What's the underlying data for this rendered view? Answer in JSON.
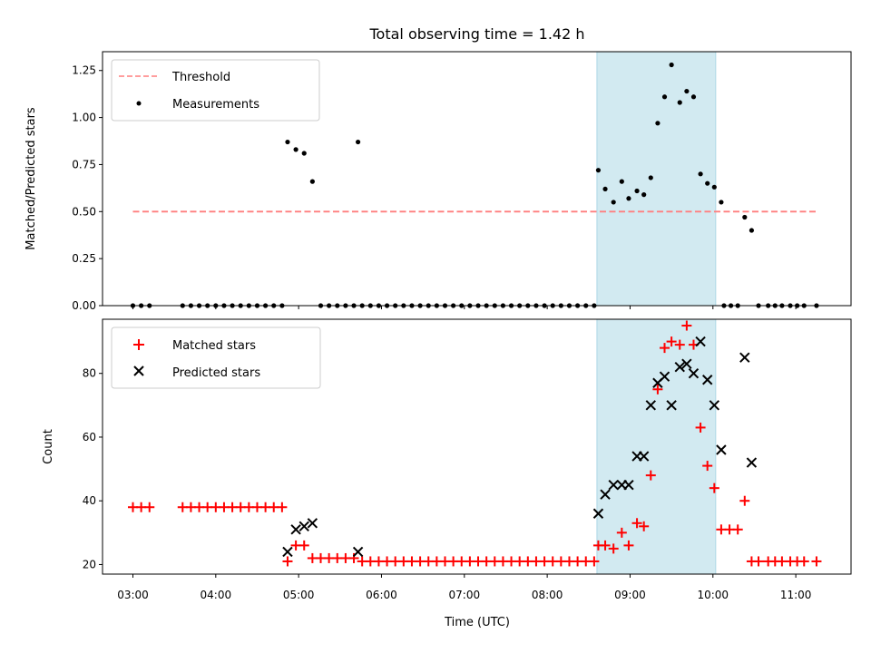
{
  "chart_data": [
    {
      "type": "scatter",
      "title": "Total observing time = 1.42 h",
      "xlabel": "",
      "ylabel": "Matched/Predicted stars",
      "x_axis": "time (UTC, hours)",
      "xlim": [
        "02:38",
        "11:40"
      ],
      "ylim": [
        0,
        1.35
      ],
      "yticks": [
        "0.00",
        "0.25",
        "0.50",
        "0.75",
        "1.00",
        "1.25"
      ],
      "xticks": [
        "03:00",
        "04:00",
        "05:00",
        "06:00",
        "07:00",
        "08:00",
        "09:00",
        "10:00",
        "11:00"
      ],
      "highlight_span": [
        "08:36",
        "10:02"
      ],
      "highlight_color": "#add8e6",
      "legend_position": "upper-left",
      "threshold": {
        "name": "Threshold",
        "value": 0.5,
        "x_range": [
          "03:00",
          "11:15"
        ],
        "color": "#ff7f7f",
        "style": "dashed"
      },
      "series": [
        {
          "name": "Measurements",
          "color": "#000000",
          "marker": "dot",
          "points": [
            [
              "03:00",
              0
            ],
            [
              "03:06",
              0
            ],
            [
              "03:12",
              0
            ],
            [
              "03:36",
              0
            ],
            [
              "03:42",
              0
            ],
            [
              "03:48",
              0
            ],
            [
              "03:54",
              0
            ],
            [
              "04:00",
              0
            ],
            [
              "04:06",
              0
            ],
            [
              "04:12",
              0
            ],
            [
              "04:18",
              0
            ],
            [
              "04:24",
              0
            ],
            [
              "04:30",
              0
            ],
            [
              "04:36",
              0
            ],
            [
              "04:42",
              0
            ],
            [
              "04:48",
              0
            ],
            [
              "04:52",
              0.87
            ],
            [
              "04:58",
              0.83
            ],
            [
              "05:04",
              0.81
            ],
            [
              "05:10",
              0.66
            ],
            [
              "05:16",
              0
            ],
            [
              "05:22",
              0
            ],
            [
              "05:28",
              0
            ],
            [
              "05:34",
              0
            ],
            [
              "05:40",
              0
            ],
            [
              "05:43",
              0.87
            ],
            [
              "05:46",
              0
            ],
            [
              "05:52",
              0
            ],
            [
              "05:58",
              0
            ],
            [
              "06:04",
              0
            ],
            [
              "06:10",
              0
            ],
            [
              "06:16",
              0
            ],
            [
              "06:22",
              0
            ],
            [
              "06:28",
              0
            ],
            [
              "06:34",
              0
            ],
            [
              "06:40",
              0
            ],
            [
              "06:46",
              0
            ],
            [
              "06:52",
              0
            ],
            [
              "06:58",
              0
            ],
            [
              "07:04",
              0
            ],
            [
              "07:10",
              0
            ],
            [
              "07:16",
              0
            ],
            [
              "07:22",
              0
            ],
            [
              "07:28",
              0
            ],
            [
              "07:34",
              0
            ],
            [
              "07:40",
              0
            ],
            [
              "07:46",
              0
            ],
            [
              "07:52",
              0
            ],
            [
              "07:58",
              0
            ],
            [
              "08:04",
              0
            ],
            [
              "08:10",
              0
            ],
            [
              "08:16",
              0
            ],
            [
              "08:22",
              0
            ],
            [
              "08:28",
              0
            ],
            [
              "08:34",
              0
            ],
            [
              "08:37",
              0.72
            ],
            [
              "08:42",
              0.62
            ],
            [
              "08:48",
              0.55
            ],
            [
              "08:54",
              0.66
            ],
            [
              "08:59",
              0.57
            ],
            [
              "09:05",
              0.61
            ],
            [
              "09:10",
              0.59
            ],
            [
              "09:15",
              0.68
            ],
            [
              "09:20",
              0.97
            ],
            [
              "09:25",
              1.11
            ],
            [
              "09:30",
              1.28
            ],
            [
              "09:36",
              1.08
            ],
            [
              "09:41",
              1.14
            ],
            [
              "09:46",
              1.11
            ],
            [
              "09:51",
              0.7
            ],
            [
              "09:56",
              0.65
            ],
            [
              "10:01",
              0.63
            ],
            [
              "10:06",
              0.55
            ],
            [
              "10:08",
              0
            ],
            [
              "10:13",
              0
            ],
            [
              "10:18",
              0
            ],
            [
              "10:23",
              0.47
            ],
            [
              "10:28",
              0.4
            ],
            [
              "10:33",
              0
            ],
            [
              "10:40",
              0
            ],
            [
              "10:45",
              0
            ],
            [
              "10:50",
              0
            ],
            [
              "10:56",
              0
            ],
            [
              "11:01",
              0
            ],
            [
              "11:06",
              0
            ],
            [
              "11:15",
              0
            ]
          ]
        }
      ]
    },
    {
      "type": "scatter",
      "title": "",
      "xlabel": "Time (UTC)",
      "ylabel": "Count",
      "xlim": [
        "02:38",
        "11:40"
      ],
      "ylim": [
        17,
        97
      ],
      "yticks": [
        "20",
        "40",
        "60",
        "80"
      ],
      "xticks": [
        "03:00",
        "04:00",
        "05:00",
        "06:00",
        "07:00",
        "08:00",
        "09:00",
        "10:00",
        "11:00"
      ],
      "highlight_span": [
        "08:36",
        "10:02"
      ],
      "highlight_color": "#add8e6",
      "legend_position": "upper-left",
      "series": [
        {
          "name": "Matched stars",
          "color": "#ff0000",
          "marker": "plus",
          "points": [
            [
              "03:00",
              38
            ],
            [
              "03:06",
              38
            ],
            [
              "03:12",
              38
            ],
            [
              "03:36",
              38
            ],
            [
              "03:42",
              38
            ],
            [
              "03:48",
              38
            ],
            [
              "03:54",
              38
            ],
            [
              "04:00",
              38
            ],
            [
              "04:06",
              38
            ],
            [
              "04:12",
              38
            ],
            [
              "04:18",
              38
            ],
            [
              "04:24",
              38
            ],
            [
              "04:30",
              38
            ],
            [
              "04:36",
              38
            ],
            [
              "04:42",
              38
            ],
            [
              "04:48",
              38
            ],
            [
              "04:52",
              21
            ],
            [
              "04:58",
              26
            ],
            [
              "05:04",
              26
            ],
            [
              "05:10",
              22
            ],
            [
              "05:16",
              22
            ],
            [
              "05:22",
              22
            ],
            [
              "05:28",
              22
            ],
            [
              "05:34",
              22
            ],
            [
              "05:40",
              22
            ],
            [
              "05:46",
              21
            ],
            [
              "05:52",
              21
            ],
            [
              "05:58",
              21
            ],
            [
              "06:04",
              21
            ],
            [
              "06:10",
              21
            ],
            [
              "06:16",
              21
            ],
            [
              "06:22",
              21
            ],
            [
              "06:28",
              21
            ],
            [
              "06:34",
              21
            ],
            [
              "06:40",
              21
            ],
            [
              "06:46",
              21
            ],
            [
              "06:52",
              21
            ],
            [
              "06:58",
              21
            ],
            [
              "07:04",
              21
            ],
            [
              "07:10",
              21
            ],
            [
              "07:16",
              21
            ],
            [
              "07:22",
              21
            ],
            [
              "07:28",
              21
            ],
            [
              "07:34",
              21
            ],
            [
              "07:40",
              21
            ],
            [
              "07:46",
              21
            ],
            [
              "07:52",
              21
            ],
            [
              "07:58",
              21
            ],
            [
              "08:04",
              21
            ],
            [
              "08:10",
              21
            ],
            [
              "08:16",
              21
            ],
            [
              "08:22",
              21
            ],
            [
              "08:28",
              21
            ],
            [
              "08:34",
              21
            ],
            [
              "08:37",
              26
            ],
            [
              "08:42",
              26
            ],
            [
              "08:48",
              25
            ],
            [
              "08:54",
              30
            ],
            [
              "08:59",
              26
            ],
            [
              "09:05",
              33
            ],
            [
              "09:10",
              32
            ],
            [
              "09:15",
              48
            ],
            [
              "09:20",
              75
            ],
            [
              "09:25",
              88
            ],
            [
              "09:30",
              90
            ],
            [
              "09:36",
              89
            ],
            [
              "09:41",
              95
            ],
            [
              "09:46",
              89
            ],
            [
              "09:51",
              63
            ],
            [
              "09:56",
              51
            ],
            [
              "10:01",
              44
            ],
            [
              "10:06",
              31
            ],
            [
              "10:12",
              31
            ],
            [
              "10:18",
              31
            ],
            [
              "10:23",
              40
            ],
            [
              "10:28",
              21
            ],
            [
              "10:33",
              21
            ],
            [
              "10:40",
              21
            ],
            [
              "10:45",
              21
            ],
            [
              "10:50",
              21
            ],
            [
              "10:56",
              21
            ],
            [
              "11:01",
              21
            ],
            [
              "11:06",
              21
            ],
            [
              "11:15",
              21
            ]
          ]
        },
        {
          "name": "Predicted stars",
          "color": "#000000",
          "marker": "x",
          "points": [
            [
              "04:52",
              24
            ],
            [
              "04:58",
              31
            ],
            [
              "05:04",
              32
            ],
            [
              "05:10",
              33
            ],
            [
              "05:43",
              24
            ],
            [
              "08:37",
              36
            ],
            [
              "08:42",
              42
            ],
            [
              "08:48",
              45
            ],
            [
              "08:54",
              45
            ],
            [
              "08:59",
              45
            ],
            [
              "09:05",
              54
            ],
            [
              "09:10",
              54
            ],
            [
              "09:15",
              70
            ],
            [
              "09:20",
              77
            ],
            [
              "09:25",
              79
            ],
            [
              "09:30",
              70
            ],
            [
              "09:36",
              82
            ],
            [
              "09:41",
              83
            ],
            [
              "09:46",
              80
            ],
            [
              "09:51",
              90
            ],
            [
              "09:56",
              78
            ],
            [
              "10:01",
              70
            ],
            [
              "10:06",
              56
            ],
            [
              "10:23",
              85
            ],
            [
              "10:28",
              52
            ]
          ]
        }
      ]
    }
  ]
}
